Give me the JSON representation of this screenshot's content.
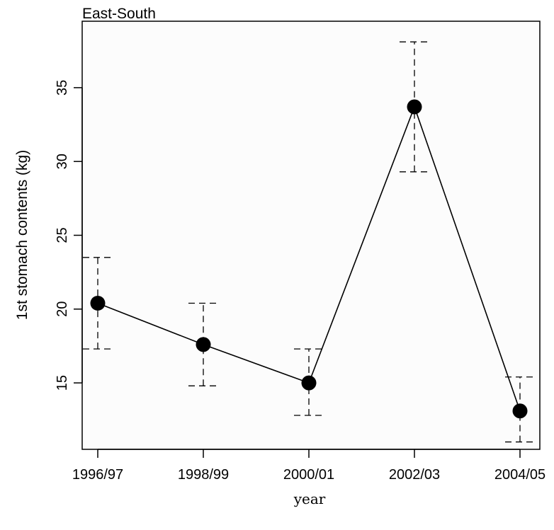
{
  "chart_data": {
    "type": "line",
    "title": "East-South",
    "xlabel": "year",
    "ylabel": "1st stomach contents (kg)",
    "categories": [
      "1996/97",
      "1998/99",
      "2000/01",
      "2002/03",
      "2004/05"
    ],
    "series": [
      {
        "values": [
          20.4,
          17.6,
          15.0,
          33.7,
          13.1
        ],
        "lower": [
          17.3,
          14.8,
          12.8,
          29.3,
          11.0
        ],
        "upper": [
          23.5,
          20.4,
          17.3,
          38.1,
          15.4
        ]
      }
    ],
    "yticks": [
      15,
      20,
      25,
      30,
      35
    ],
    "ylim": [
      10.5,
      39.5
    ],
    "grid": false,
    "marker": "filled-circle",
    "error_bars": "dashed"
  }
}
